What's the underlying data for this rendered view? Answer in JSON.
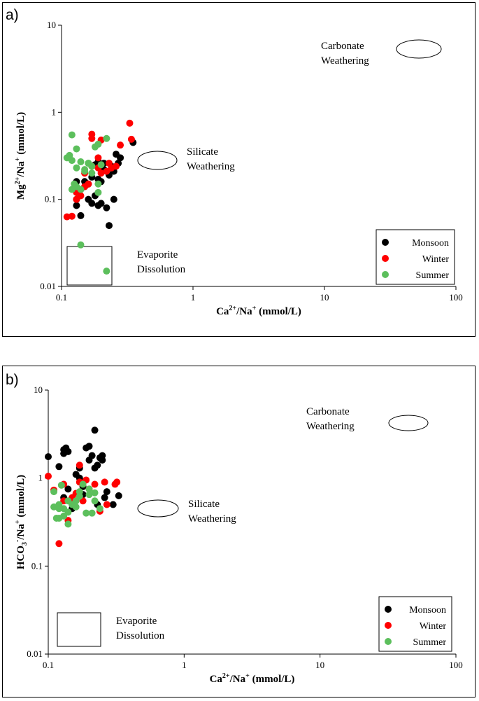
{
  "chart_data": [
    {
      "type": "scatter",
      "panel_label": "a)",
      "xlabel": "Ca2+/Na+ (mmol/L)",
      "ylabel": "Mg2+/Na+ (mmol/L)",
      "x_scale": "log",
      "y_scale": "log",
      "xlim": [
        0.1,
        100
      ],
      "ylim": [
        0.01,
        10
      ],
      "x_ticks": [
        "0.1",
        "1",
        "10",
        "100"
      ],
      "y_ticks": [
        "0.01",
        "0.1",
        "1",
        "10"
      ],
      "legend_position": "bottom-right",
      "series": [
        {
          "name": "Monsoon",
          "color": "#000000",
          "points": [
            [
              0.13,
              0.085
            ],
            [
              0.14,
              0.065
            ],
            [
              0.13,
              0.1
            ],
            [
              0.16,
              0.1
            ],
            [
              0.17,
              0.09
            ],
            [
              0.18,
              0.11
            ],
            [
              0.19,
              0.085
            ],
            [
              0.2,
              0.09
            ],
            [
              0.22,
              0.08
            ],
            [
              0.23,
              0.05
            ],
            [
              0.25,
              0.1
            ],
            [
              0.14,
              0.13
            ],
            [
              0.15,
              0.16
            ],
            [
              0.17,
              0.18
            ],
            [
              0.19,
              0.17
            ],
            [
              0.2,
              0.16
            ],
            [
              0.21,
              0.22
            ],
            [
              0.22,
              0.21
            ],
            [
              0.23,
              0.19
            ],
            [
              0.24,
              0.24
            ],
            [
              0.25,
              0.21
            ],
            [
              0.26,
              0.33
            ],
            [
              0.27,
              0.26
            ],
            [
              0.28,
              0.3
            ],
            [
              0.35,
              0.45
            ],
            [
              0.18,
              0.25
            ],
            [
              0.16,
              0.15
            ],
            [
              0.13,
              0.16
            ],
            [
              0.19,
              0.27
            ],
            [
              0.21,
              0.26
            ],
            [
              0.15,
              0.14
            ]
          ]
        },
        {
          "name": "Winter",
          "color": "#ff0000",
          "points": [
            [
              0.11,
              0.063
            ],
            [
              0.12,
              0.064
            ],
            [
              0.13,
              0.1
            ],
            [
              0.13,
              0.12
            ],
            [
              0.14,
              0.11
            ],
            [
              0.15,
              0.2
            ],
            [
              0.16,
              0.15
            ],
            [
              0.17,
              0.5
            ],
            [
              0.17,
              0.56
            ],
            [
              0.19,
              0.3
            ],
            [
              0.2,
              0.2
            ],
            [
              0.22,
              0.21
            ],
            [
              0.24,
              0.23
            ],
            [
              0.26,
              0.24
            ],
            [
              0.28,
              0.42
            ],
            [
              0.33,
              0.75
            ],
            [
              0.34,
              0.49
            ],
            [
              0.17,
              0.24
            ],
            [
              0.2,
              0.48
            ],
            [
              0.15,
              0.14
            ],
            [
              0.23,
              0.26
            ],
            [
              0.19,
              0.23
            ]
          ]
        },
        {
          "name": "Summer",
          "color": "#5cbf5c",
          "points": [
            [
              0.11,
              0.3
            ],
            [
              0.115,
              0.32
            ],
            [
              0.12,
              0.28
            ],
            [
              0.12,
              0.55
            ],
            [
              0.125,
              0.15
            ],
            [
              0.12,
              0.13
            ],
            [
              0.13,
              0.23
            ],
            [
              0.14,
              0.27
            ],
            [
              0.14,
              0.13
            ],
            [
              0.13,
              0.38
            ],
            [
              0.15,
              0.21
            ],
            [
              0.16,
              0.26
            ],
            [
              0.17,
              0.2
            ],
            [
              0.18,
              0.4
            ],
            [
              0.19,
              0.43
            ],
            [
              0.2,
              0.25
            ],
            [
              0.19,
              0.15
            ],
            [
              0.19,
              0.12
            ],
            [
              0.17,
              0.24
            ],
            [
              0.22,
              0.5
            ],
            [
              0.14,
              0.03
            ],
            [
              0.22,
              0.015
            ],
            [
              0.13,
              0.14
            ],
            [
              0.16,
              0.26
            ],
            [
              0.15,
              0.22
            ]
          ]
        }
      ],
      "annotations": [
        {
          "lines": [
            "Carbonate",
            "Weathering"
          ],
          "shape": "ellipse"
        },
        {
          "lines": [
            "Silicate",
            "Weathering"
          ],
          "shape": "ellipse"
        },
        {
          "lines": [
            "Evaporite",
            "Dissolution"
          ],
          "shape": "rectangle"
        }
      ]
    },
    {
      "type": "scatter",
      "panel_label": "b)",
      "xlabel": "Ca2+/Na+ (mmol/L)",
      "ylabel": "HCO3-/Na+ (mmol/L)",
      "x_scale": "log",
      "y_scale": "log",
      "xlim": [
        0.1,
        100
      ],
      "ylim": [
        0.01,
        10
      ],
      "x_ticks": [
        "0.1",
        "1",
        "10",
        "100"
      ],
      "y_ticks": [
        "0.01",
        "0.1",
        "1",
        "10"
      ],
      "legend_position": "bottom-right",
      "series": [
        {
          "name": "Monsoon",
          "color": "#000000",
          "points": [
            [
              0.1,
              1.75
            ],
            [
              0.12,
              1.35
            ],
            [
              0.13,
              2.1
            ],
            [
              0.13,
              1.9
            ],
            [
              0.14,
              2.0
            ],
            [
              0.135,
              2.2
            ],
            [
              0.14,
              0.75
            ],
            [
              0.15,
              0.45
            ],
            [
              0.13,
              0.6
            ],
            [
              0.16,
              1.1
            ],
            [
              0.17,
              1.3
            ],
            [
              0.18,
              0.8
            ],
            [
              0.18,
              0.65
            ],
            [
              0.19,
              2.2
            ],
            [
              0.2,
              2.3
            ],
            [
              0.2,
              1.6
            ],
            [
              0.21,
              1.8
            ],
            [
              0.22,
              3.5
            ],
            [
              0.22,
              1.3
            ],
            [
              0.23,
              1.4
            ],
            [
              0.24,
              1.7
            ],
            [
              0.25,
              1.6
            ],
            [
              0.25,
              1.8
            ],
            [
              0.23,
              0.5
            ],
            [
              0.26,
              0.6
            ],
            [
              0.27,
              0.7
            ],
            [
              0.3,
              0.5
            ],
            [
              0.33,
              0.63
            ],
            [
              0.15,
              0.5
            ],
            [
              0.17,
              1.0
            ]
          ]
        },
        {
          "name": "Winter",
          "color": "#ff0000",
          "points": [
            [
              0.1,
              1.05
            ],
            [
              0.11,
              0.73
            ],
            [
              0.12,
              0.18
            ],
            [
              0.13,
              0.85
            ],
            [
              0.14,
              0.33
            ],
            [
              0.15,
              0.6
            ],
            [
              0.16,
              0.67
            ],
            [
              0.17,
              0.9
            ],
            [
              0.17,
              1.4
            ],
            [
              0.18,
              0.55
            ],
            [
              0.19,
              0.95
            ],
            [
              0.2,
              0.75
            ],
            [
              0.22,
              0.85
            ],
            [
              0.24,
              0.42
            ],
            [
              0.26,
              0.9
            ],
            [
              0.27,
              0.5
            ],
            [
              0.31,
              0.85
            ],
            [
              0.32,
              0.9
            ],
            [
              0.15,
              0.58
            ],
            [
              0.13,
              0.55
            ]
          ]
        },
        {
          "name": "Summer",
          "color": "#5cbf5c",
          "points": [
            [
              0.11,
              0.7
            ],
            [
              0.11,
              0.47
            ],
            [
              0.115,
              0.35
            ],
            [
              0.12,
              0.45
            ],
            [
              0.12,
              0.35
            ],
            [
              0.125,
              0.83
            ],
            [
              0.13,
              0.37
            ],
            [
              0.13,
              0.45
            ],
            [
              0.14,
              0.3
            ],
            [
              0.14,
              0.41
            ],
            [
              0.15,
              0.5
            ],
            [
              0.16,
              0.55
            ],
            [
              0.17,
              0.62
            ],
            [
              0.17,
              0.7
            ],
            [
              0.18,
              0.85
            ],
            [
              0.19,
              0.4
            ],
            [
              0.2,
              0.65
            ],
            [
              0.2,
              0.75
            ],
            [
              0.21,
              0.4
            ],
            [
              0.22,
              0.55
            ],
            [
              0.22,
              0.68
            ],
            [
              0.24,
              0.45
            ],
            [
              0.14,
              0.55
            ],
            [
              0.16,
              0.47
            ],
            [
              0.12,
              0.5
            ]
          ]
        }
      ],
      "annotations": [
        {
          "lines": [
            "Carbonate",
            "Weathering"
          ],
          "shape": "ellipse"
        },
        {
          "lines": [
            "Silicate",
            "Weathering"
          ],
          "shape": "ellipse"
        },
        {
          "lines": [
            "Evaporite",
            "Dissolution"
          ],
          "shape": "rectangle"
        }
      ]
    }
  ]
}
